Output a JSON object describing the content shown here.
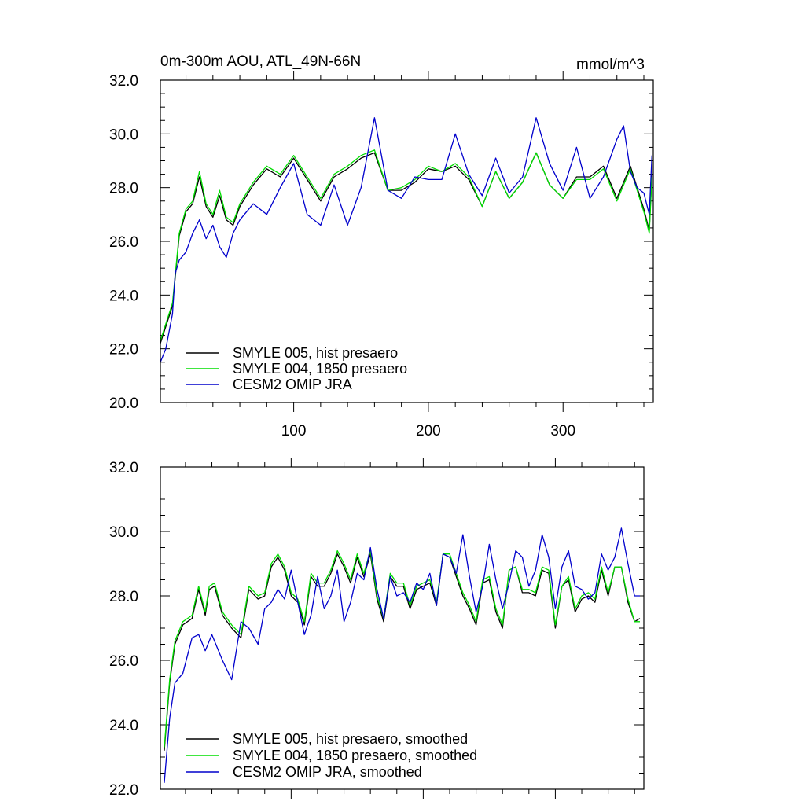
{
  "colors": {
    "smyle005": "#000000",
    "smyle004": "#00dd00",
    "omip": "#0000cc",
    "frame": "#000000"
  },
  "chart_data": [
    {
      "type": "line",
      "title": "0m-300m AOU, ATL_49N-66N",
      "units": "mmol/m^3",
      "xlim": [
        1,
        367
      ],
      "ylim": [
        20.0,
        32.0
      ],
      "xticks": [
        100,
        200,
        300
      ],
      "xtick_labels": [
        "100",
        "200",
        "300"
      ],
      "yticks": [
        20.0,
        22.0,
        24.0,
        26.0,
        28.0,
        30.0,
        32.0
      ],
      "ytick_labels": [
        "20.0",
        "22.0",
        "24.0",
        "26.0",
        "28.0",
        "30.0",
        "32.0"
      ],
      "legend_position": "bottom-left",
      "series": [
        {
          "name": "SMYLE 005, hist presaero",
          "color_key": "smyle005",
          "x": [
            1,
            10,
            15,
            20,
            25,
            30,
            35,
            40,
            45,
            50,
            55,
            60,
            70,
            80,
            90,
            100,
            110,
            120,
            130,
            140,
            150,
            160,
            170,
            180,
            190,
            200,
            210,
            220,
            230,
            240,
            250,
            260,
            270,
            280,
            290,
            300,
            310,
            320,
            330,
            340,
            350,
            360,
            364,
            366
          ],
          "y": [
            22.2,
            23.6,
            26.2,
            27.1,
            27.4,
            28.4,
            27.3,
            26.9,
            27.7,
            26.8,
            26.6,
            27.3,
            28.1,
            28.7,
            28.4,
            29.1,
            28.3,
            27.5,
            28.4,
            28.7,
            29.1,
            29.3,
            27.9,
            27.9,
            28.2,
            28.7,
            28.6,
            28.8,
            28.3,
            27.3,
            28.6,
            27.6,
            28.2,
            29.3,
            28.1,
            27.6,
            28.4,
            28.4,
            28.8,
            27.6,
            28.8,
            27.2,
            26.4,
            28.5
          ]
        },
        {
          "name": "SMYLE 004, 1850 presaero",
          "color_key": "smyle004",
          "x": [
            1,
            10,
            15,
            20,
            25,
            30,
            35,
            40,
            45,
            50,
            55,
            60,
            70,
            80,
            90,
            100,
            110,
            120,
            130,
            140,
            150,
            160,
            170,
            180,
            190,
            200,
            210,
            220,
            230,
            240,
            250,
            260,
            270,
            280,
            290,
            300,
            310,
            320,
            330,
            340,
            350,
            360,
            364,
            366
          ],
          "y": [
            22.3,
            23.7,
            26.3,
            27.2,
            27.5,
            28.6,
            27.4,
            27.0,
            27.9,
            26.9,
            26.7,
            27.4,
            28.2,
            28.8,
            28.5,
            29.2,
            28.4,
            27.6,
            28.5,
            28.8,
            29.2,
            29.4,
            27.9,
            28.0,
            28.3,
            28.8,
            28.6,
            28.9,
            28.4,
            27.3,
            28.6,
            27.6,
            28.2,
            29.3,
            28.1,
            27.6,
            28.3,
            28.3,
            28.7,
            27.5,
            28.7,
            27.1,
            26.3,
            28.4
          ]
        },
        {
          "name": "CESM2 OMIP JRA",
          "color_key": "omip",
          "x": [
            1,
            5,
            10,
            12,
            15,
            20,
            25,
            30,
            35,
            40,
            45,
            50,
            55,
            60,
            70,
            80,
            90,
            100,
            110,
            120,
            130,
            140,
            150,
            160,
            170,
            180,
            190,
            200,
            210,
            220,
            230,
            240,
            250,
            260,
            270,
            280,
            290,
            300,
            310,
            320,
            330,
            340,
            345,
            350,
            355,
            360,
            364,
            366
          ],
          "y": [
            21.5,
            22.0,
            23.3,
            24.8,
            25.3,
            25.6,
            26.3,
            26.8,
            26.1,
            26.6,
            25.8,
            25.4,
            26.3,
            26.8,
            27.4,
            27.0,
            28.0,
            28.9,
            27.0,
            26.6,
            28.1,
            26.6,
            28.0,
            30.6,
            27.9,
            27.6,
            28.4,
            28.3,
            28.3,
            30.0,
            28.5,
            27.7,
            29.1,
            27.8,
            28.4,
            30.6,
            28.9,
            27.9,
            29.5,
            27.6,
            28.4,
            29.8,
            30.3,
            28.6,
            28.0,
            27.8,
            27.0,
            29.2
          ]
        }
      ]
    },
    {
      "type": "line",
      "xlim": [
        1,
        367
      ],
      "ylim": [
        22.0,
        32.0
      ],
      "xticks": [
        100,
        200,
        300
      ],
      "yticks": [
        22.0,
        24.0,
        26.0,
        28.0,
        30.0,
        32.0
      ],
      "ytick_labels": [
        "22.0",
        "24.0",
        "26.0",
        "28.0",
        "30.0",
        "32.0"
      ],
      "legend_position": "bottom-left",
      "series": [
        {
          "name": "SMYLE 005, hist presaero, smoothed",
          "color_key": "smyle005",
          "x": [
            4,
            8,
            12,
            18,
            25,
            30,
            35,
            38,
            42,
            48,
            55,
            62,
            68,
            75,
            80,
            85,
            90,
            95,
            100,
            105,
            110,
            115,
            120,
            125,
            130,
            135,
            140,
            145,
            150,
            155,
            160,
            165,
            170,
            175,
            180,
            185,
            190,
            195,
            200,
            205,
            210,
            215,
            220,
            225,
            230,
            235,
            240,
            245,
            250,
            255,
            260,
            265,
            270,
            275,
            280,
            285,
            290,
            295,
            300,
            305,
            310,
            315,
            320,
            325,
            330,
            335,
            340,
            345,
            350,
            355,
            360,
            364
          ],
          "y": [
            23.2,
            25.3,
            26.5,
            27.1,
            27.3,
            28.2,
            27.4,
            28.2,
            28.3,
            27.4,
            27.0,
            26.7,
            28.2,
            27.9,
            28.0,
            28.9,
            29.2,
            28.8,
            28.0,
            27.8,
            27.1,
            28.6,
            28.3,
            28.3,
            28.7,
            29.3,
            28.9,
            28.4,
            29.2,
            28.6,
            29.3,
            27.9,
            27.2,
            28.6,
            28.3,
            28.3,
            27.6,
            28.2,
            28.3,
            28.4,
            27.7,
            29.3,
            29.2,
            28.6,
            28.0,
            27.6,
            27.1,
            28.4,
            28.5,
            27.5,
            27.0,
            28.8,
            28.9,
            28.1,
            28.1,
            28.0,
            28.8,
            28.7,
            27.0,
            28.3,
            28.5,
            27.5,
            27.9,
            28.0,
            27.8,
            28.8,
            28.0,
            28.9,
            28.9,
            27.8,
            27.2,
            27.3
          ]
        },
        {
          "name": "SMYLE 004, 1850 presaero, smoothed",
          "color_key": "smyle004",
          "x": [
            4,
            8,
            12,
            18,
            25,
            30,
            35,
            38,
            42,
            48,
            55,
            62,
            68,
            75,
            80,
            85,
            90,
            95,
            100,
            105,
            110,
            115,
            120,
            125,
            130,
            135,
            140,
            145,
            150,
            155,
            160,
            165,
            170,
            175,
            180,
            185,
            190,
            195,
            200,
            205,
            210,
            215,
            220,
            225,
            230,
            235,
            240,
            245,
            250,
            255,
            260,
            265,
            270,
            275,
            280,
            285,
            290,
            295,
            300,
            305,
            310,
            315,
            320,
            325,
            330,
            335,
            340,
            345,
            350,
            355,
            360,
            364
          ],
          "y": [
            23.3,
            25.4,
            26.6,
            27.2,
            27.4,
            28.3,
            27.5,
            28.3,
            28.4,
            27.5,
            27.1,
            26.8,
            28.3,
            28.0,
            28.1,
            29.0,
            29.3,
            28.9,
            28.1,
            27.9,
            27.2,
            28.7,
            28.4,
            28.4,
            28.8,
            29.4,
            29.0,
            28.5,
            29.3,
            28.7,
            29.4,
            28.0,
            27.3,
            28.7,
            28.4,
            28.4,
            27.7,
            28.3,
            28.4,
            28.5,
            27.8,
            29.3,
            29.3,
            28.7,
            28.1,
            27.7,
            27.2,
            28.5,
            28.6,
            27.6,
            27.1,
            28.8,
            28.9,
            28.2,
            28.2,
            28.1,
            28.9,
            28.8,
            27.1,
            28.3,
            28.6,
            27.6,
            28.0,
            28.1,
            27.9,
            28.9,
            28.1,
            28.9,
            28.9,
            27.9,
            27.2,
            27.2
          ]
        },
        {
          "name": "CESM2 OMIP JRA, smoothed",
          "color_key": "omip",
          "x": [
            4,
            8,
            12,
            18,
            25,
            30,
            35,
            40,
            48,
            55,
            62,
            68,
            75,
            80,
            85,
            90,
            95,
            100,
            105,
            110,
            115,
            120,
            125,
            130,
            135,
            140,
            145,
            150,
            155,
            160,
            165,
            170,
            175,
            180,
            185,
            190,
            195,
            200,
            205,
            210,
            215,
            220,
            225,
            230,
            235,
            240,
            245,
            250,
            255,
            260,
            265,
            270,
            275,
            280,
            285,
            290,
            295,
            300,
            305,
            310,
            315,
            320,
            325,
            330,
            335,
            340,
            345,
            350,
            355,
            360,
            364
          ],
          "y": [
            22.2,
            24.2,
            25.3,
            25.6,
            26.7,
            26.8,
            26.3,
            26.8,
            26.0,
            25.4,
            27.2,
            27.0,
            26.5,
            27.6,
            27.8,
            28.2,
            27.9,
            28.8,
            27.8,
            26.8,
            27.4,
            28.6,
            27.6,
            28.0,
            28.8,
            27.2,
            27.8,
            28.7,
            28.5,
            29.5,
            28.2,
            27.3,
            28.6,
            28.0,
            28.1,
            27.8,
            28.4,
            28.2,
            28.7,
            27.7,
            29.3,
            29.2,
            28.7,
            29.9,
            28.6,
            27.5,
            28.3,
            29.6,
            28.5,
            27.6,
            28.4,
            29.4,
            29.2,
            28.3,
            28.8,
            29.9,
            29.2,
            27.6,
            28.9,
            29.4,
            28.3,
            28.2,
            27.9,
            28.1,
            29.3,
            28.8,
            29.2,
            30.1,
            29.0,
            28.0,
            28.0
          ]
        }
      ]
    }
  ]
}
